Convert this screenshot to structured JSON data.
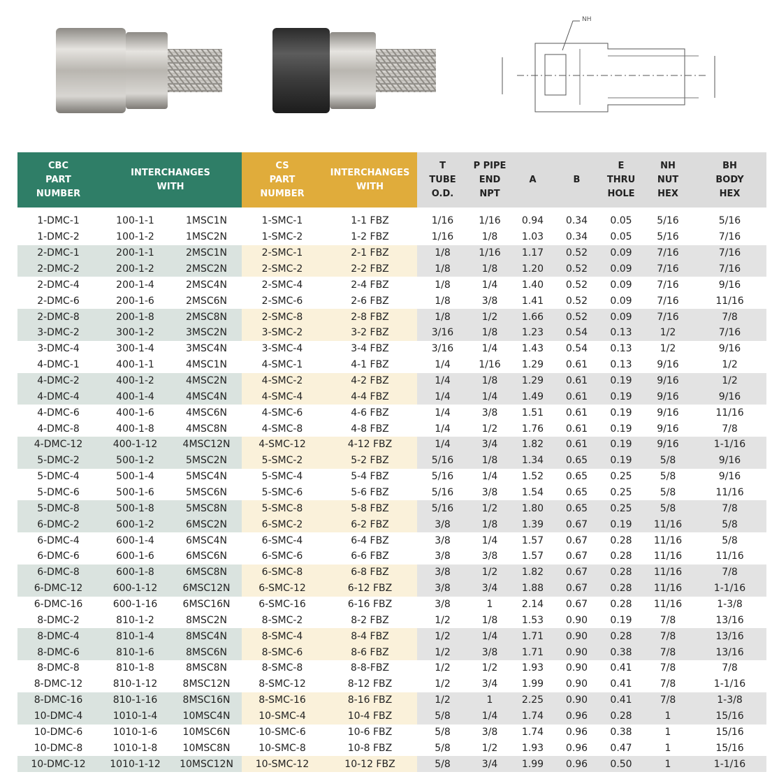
{
  "drawing": {
    "label": "NH"
  },
  "table": {
    "header": [
      {
        "lines": [
          "CBC",
          "PART",
          "NUMBER"
        ]
      },
      {
        "lines": [
          "INTERCHANGES",
          "WITH"
        ]
      },
      {
        "lines": [
          "CS",
          "PART",
          "NUMBER"
        ]
      },
      {
        "lines": [
          "INTERCHANGES",
          "WITH"
        ]
      },
      {
        "lines": [
          "T",
          "TUBE",
          "O.D."
        ]
      },
      {
        "lines": [
          "P PIPE",
          "END",
          "NPT"
        ]
      },
      {
        "lines": [
          "A"
        ]
      },
      {
        "lines": [
          "B"
        ]
      },
      {
        "lines": [
          "E",
          "THRU",
          "HOLE"
        ]
      },
      {
        "lines": [
          "NH",
          "NUT",
          "HEX"
        ]
      },
      {
        "lines": [
          "BH",
          "BODY",
          "HEX"
        ]
      }
    ],
    "rows": [
      [
        "1-DMC-1",
        "100-1-1",
        "1MSC1N",
        "1-SMC-1",
        "1-1 FBZ",
        "1/16",
        "1/16",
        "0.94",
        "0.34",
        "0.05",
        "5/16",
        "5/16"
      ],
      [
        "1-DMC-2",
        "100-1-2",
        "1MSC2N",
        "1-SMC-2",
        "1-2 FBZ",
        "1/16",
        "1/8",
        "1.03",
        "0.34",
        "0.05",
        "5/16",
        "7/16"
      ],
      [
        "2-DMC-1",
        "200-1-1",
        "2MSC1N",
        "2-SMC-1",
        "2-1 FBZ",
        "1/8",
        "1/16",
        "1.17",
        "0.52",
        "0.09",
        "7/16",
        "7/16"
      ],
      [
        "2-DMC-2",
        "200-1-2",
        "2MSC2N",
        "2-SMC-2",
        "2-2 FBZ",
        "1/8",
        "1/8",
        "1.20",
        "0.52",
        "0.09",
        "7/16",
        "7/16"
      ],
      [
        "2-DMC-4",
        "200-1-4",
        "2MSC4N",
        "2-SMC-4",
        "2-4 FBZ",
        "1/8",
        "1/4",
        "1.40",
        "0.52",
        "0.09",
        "7/16",
        "9/16"
      ],
      [
        "2-DMC-6",
        "200-1-6",
        "2MSC6N",
        "2-SMC-6",
        "2-6 FBZ",
        "1/8",
        "3/8",
        "1.41",
        "0.52",
        "0.09",
        "7/16",
        "11/16"
      ],
      [
        "2-DMC-8",
        "200-1-8",
        "2MSC8N",
        "2-SMC-8",
        "2-8 FBZ",
        "1/8",
        "1/2",
        "1.66",
        "0.52",
        "0.09",
        "7/16",
        "7/8"
      ],
      [
        "3-DMC-2",
        "300-1-2",
        "3MSC2N",
        "3-SMC-2",
        "3-2 FBZ",
        "3/16",
        "1/8",
        "1.23",
        "0.54",
        "0.13",
        "1/2",
        "7/16"
      ],
      [
        "3-DMC-4",
        "300-1-4",
        "3MSC4N",
        "3-SMC-4",
        "3-4 FBZ",
        "3/16",
        "1/4",
        "1.43",
        "0.54",
        "0.13",
        "1/2",
        "9/16"
      ],
      [
        "4-DMC-1",
        "400-1-1",
        "4MSC1N",
        "4-SMC-1",
        "4-1 FBZ",
        "1/4",
        "1/16",
        "1.29",
        "0.61",
        "0.13",
        "9/16",
        "1/2"
      ],
      [
        "4-DMC-2",
        "400-1-2",
        "4MSC2N",
        "4-SMC-2",
        "4-2 FBZ",
        "1/4",
        "1/8",
        "1.29",
        "0.61",
        "0.19",
        "9/16",
        "1/2"
      ],
      [
        "4-DMC-4",
        "400-1-4",
        "4MSC4N",
        "4-SMC-4",
        "4-4 FBZ",
        "1/4",
        "1/4",
        "1.49",
        "0.61",
        "0.19",
        "9/16",
        "9/16"
      ],
      [
        "4-DMC-6",
        "400-1-6",
        "4MSC6N",
        "4-SMC-6",
        "4-6 FBZ",
        "1/4",
        "3/8",
        "1.51",
        "0.61",
        "0.19",
        "9/16",
        "11/16"
      ],
      [
        "4-DMC-8",
        "400-1-8",
        "4MSC8N",
        "4-SMC-8",
        "4-8 FBZ",
        "1/4",
        "1/2",
        "1.76",
        "0.61",
        "0.19",
        "9/16",
        "7/8"
      ],
      [
        "4-DMC-12",
        "400-1-12",
        "4MSC12N",
        "4-SMC-12",
        "4-12 FBZ",
        "1/4",
        "3/4",
        "1.82",
        "0.61",
        "0.19",
        "9/16",
        "1-1/16"
      ],
      [
        "5-DMC-2",
        "500-1-2",
        "5MSC2N",
        "5-SMC-2",
        "5-2 FBZ",
        "5/16",
        "1/8",
        "1.34",
        "0.65",
        "0.19",
        "5/8",
        "9/16"
      ],
      [
        "5-DMC-4",
        "500-1-4",
        "5MSC4N",
        "5-SMC-4",
        "5-4 FBZ",
        "5/16",
        "1/4",
        "1.52",
        "0.65",
        "0.25",
        "5/8",
        "9/16"
      ],
      [
        "5-DMC-6",
        "500-1-6",
        "5MSC6N",
        "5-SMC-6",
        "5-6 FBZ",
        "5/16",
        "3/8",
        "1.54",
        "0.65",
        "0.25",
        "5/8",
        "11/16"
      ],
      [
        "5-DMC-8",
        "500-1-8",
        "5MSC8N",
        "5-SMC-8",
        "5-8 FBZ",
        "5/16",
        "1/2",
        "1.80",
        "0.65",
        "0.25",
        "5/8",
        "7/8"
      ],
      [
        "6-DMC-2",
        "600-1-2",
        "6MSC2N",
        "6-SMC-2",
        "6-2 FBZ",
        "3/8",
        "1/8",
        "1.39",
        "0.67",
        "0.19",
        "11/16",
        "5/8"
      ],
      [
        "6-DMC-4",
        "600-1-4",
        "6MSC4N",
        "6-SMC-4",
        "6-4 FBZ",
        "3/8",
        "1/4",
        "1.57",
        "0.67",
        "0.28",
        "11/16",
        "5/8"
      ],
      [
        "6-DMC-6",
        "600-1-6",
        "6MSC6N",
        "6-SMC-6",
        "6-6 FBZ",
        "3/8",
        "3/8",
        "1.57",
        "0.67",
        "0.28",
        "11/16",
        "11/16"
      ],
      [
        "6-DMC-8",
        "600-1-8",
        "6MSC8N",
        "6-SMC-8",
        "6-8 FBZ",
        "3/8",
        "1/2",
        "1.82",
        "0.67",
        "0.28",
        "11/16",
        "7/8"
      ],
      [
        "6-DMC-12",
        "600-1-12",
        "6MSC12N",
        "6-SMC-12",
        "6-12 FBZ",
        "3/8",
        "3/4",
        "1.88",
        "0.67",
        "0.28",
        "11/16",
        "1-1/16"
      ],
      [
        "6-DMC-16",
        "600-1-16",
        "6MSC16N",
        "6-SMC-16",
        "6-16 FBZ",
        "3/8",
        "1",
        "2.14",
        "0.67",
        "0.28",
        "11/16",
        "1-3/8"
      ],
      [
        "8-DMC-2",
        "810-1-2",
        "8MSC2N",
        "8-SMC-2",
        "8-2 FBZ",
        "1/2",
        "1/8",
        "1.53",
        "0.90",
        "0.19",
        "7/8",
        "13/16"
      ],
      [
        "8-DMC-4",
        "810-1-4",
        "8MSC4N",
        "8-SMC-4",
        "8-4 FBZ",
        "1/2",
        "1/4",
        "1.71",
        "0.90",
        "0.28",
        "7/8",
        "13/16"
      ],
      [
        "8-DMC-6",
        "810-1-6",
        "8MSC6N",
        "8-SMC-6",
        "8-6 FBZ",
        "1/2",
        "3/8",
        "1.71",
        "0.90",
        "0.38",
        "7/8",
        "13/16"
      ],
      [
        "8-DMC-8",
        "810-1-8",
        "8MSC8N",
        "8-SMC-8",
        "8-8-FBZ",
        "1/2",
        "1/2",
        "1.93",
        "0.90",
        "0.41",
        "7/8",
        "7/8"
      ],
      [
        "8-DMC-12",
        "810-1-12",
        "8MSC12N",
        "8-SMC-12",
        "8-12 FBZ",
        "1/2",
        "3/4",
        "1.99",
        "0.90",
        "0.41",
        "7/8",
        "1-1/16"
      ],
      [
        "8-DMC-16",
        "810-1-16",
        "8MSC16N",
        "8-SMC-16",
        "8-16 FBZ",
        "1/2",
        "1",
        "2.25",
        "0.90",
        "0.41",
        "7/8",
        "1-3/8"
      ],
      [
        "10-DMC-4",
        "1010-1-4",
        "10MSC4N",
        "10-SMC-4",
        "10-4 FBZ",
        "5/8",
        "1/4",
        "1.74",
        "0.96",
        "0.28",
        "1",
        "15/16"
      ],
      [
        "10-DMC-6",
        "1010-1-6",
        "10MSC6N",
        "10-SMC-6",
        "10-6 FBZ",
        "5/8",
        "3/8",
        "1.74",
        "0.96",
        "0.38",
        "1",
        "15/16"
      ],
      [
        "10-DMC-8",
        "1010-1-8",
        "10MSC8N",
        "10-SMC-8",
        "10-8 FBZ",
        "5/8",
        "1/2",
        "1.93",
        "0.96",
        "0.47",
        "1",
        "15/16"
      ],
      [
        "10-DMC-12",
        "1010-1-12",
        "10MSC12N",
        "10-SMC-12",
        "10-12 FBZ",
        "5/8",
        "3/4",
        "1.99",
        "0.96",
        "0.50",
        "1",
        "1-1/16"
      ]
    ]
  }
}
